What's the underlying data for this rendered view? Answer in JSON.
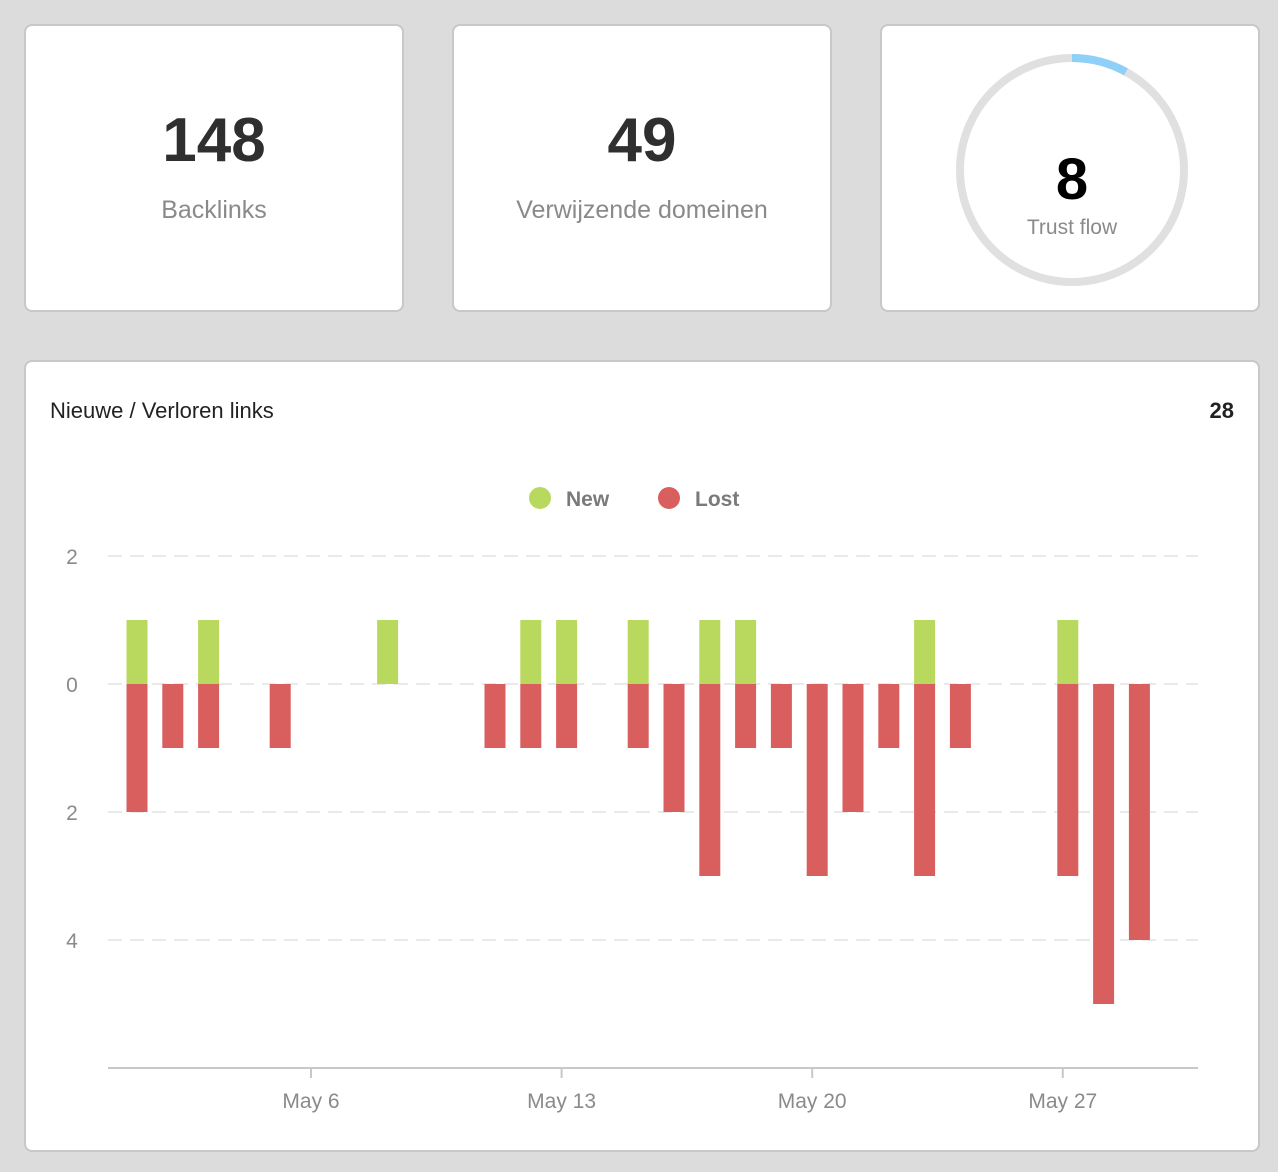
{
  "stats": {
    "backlinks": {
      "value": "148",
      "label": "Backlinks"
    },
    "domains": {
      "value": "49",
      "label": "Verwijzende domeinen"
    },
    "trust": {
      "value": "8",
      "label": "Trust flow",
      "fraction": 0.08,
      "progress_color": "#8fd0f8",
      "track_color": "#e0e0e0"
    }
  },
  "chart_card": {
    "title": "Nieuwe / Verloren links",
    "total": "28"
  },
  "chart_data": {
    "type": "bar",
    "stacked": true,
    "x": [
      "2019-05-01",
      "2019-05-02",
      "2019-05-03",
      "2019-05-04",
      "2019-05-05",
      "2019-05-06",
      "2019-05-07",
      "2019-05-08",
      "2019-05-09",
      "2019-05-10",
      "2019-05-11",
      "2019-05-12",
      "2019-05-13",
      "2019-05-14",
      "2019-05-15",
      "2019-05-16",
      "2019-05-17",
      "2019-05-18",
      "2019-05-19",
      "2019-05-20",
      "2019-05-21",
      "2019-05-22",
      "2019-05-23",
      "2019-05-24",
      "2019-05-25",
      "2019-05-26",
      "2019-05-27",
      "2019-05-28",
      "2019-05-29"
    ],
    "series": [
      {
        "name": "New",
        "color": "#b8d95d",
        "values": [
          1,
          0,
          1,
          0,
          0,
          0,
          0,
          1,
          0,
          0,
          0,
          1,
          1,
          0,
          1,
          0,
          1,
          1,
          0,
          0,
          0,
          0,
          1,
          0,
          0,
          0,
          1,
          0,
          0
        ]
      },
      {
        "name": "Lost",
        "color": "#d95f5f",
        "values": [
          -2,
          -1,
          -1,
          0,
          -1,
          0,
          0,
          0,
          0,
          0,
          -1,
          -1,
          -1,
          0,
          -1,
          -2,
          -3,
          -1,
          -1,
          -3,
          -2,
          -1,
          -3,
          -1,
          0,
          0,
          -3,
          -5,
          -4
        ]
      }
    ],
    "y_ticks": [
      {
        "value": 2,
        "label": "2"
      },
      {
        "value": 0,
        "label": "0"
      },
      {
        "value": -2,
        "label": "2"
      },
      {
        "value": -4,
        "label": "4"
      }
    ],
    "ylim": [
      -6,
      2
    ],
    "x_ticks": [
      {
        "date": "2019-05-06",
        "label": "May 6"
      },
      {
        "date": "2019-05-13",
        "label": "May 13"
      },
      {
        "date": "2019-05-20",
        "label": "May 20"
      },
      {
        "date": "2019-05-27",
        "label": "May 27"
      }
    ],
    "legend_position": "top-center",
    "grid": true
  }
}
